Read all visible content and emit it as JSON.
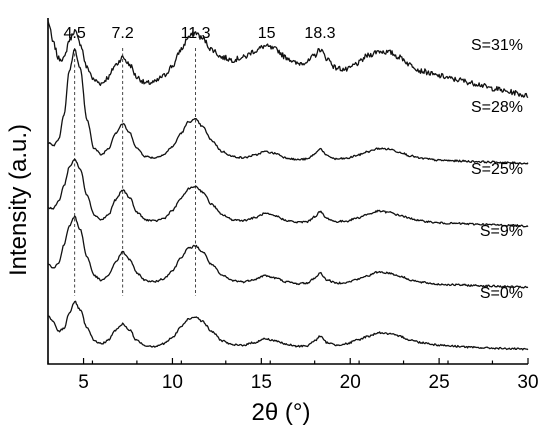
{
  "chart_data": {
    "type": "line",
    "xlabel": "2θ (°)",
    "ylabel": "Intensity (a.u.)",
    "xlim": [
      3,
      30
    ],
    "xticks": [
      5,
      10,
      15,
      20,
      25,
      30
    ],
    "yticks_shown": false,
    "grid": false,
    "peaks": [
      {
        "label": "4.5",
        "x": 4.5
      },
      {
        "label": "7.2",
        "x": 7.2
      },
      {
        "label": "11.3",
        "x": 11.3
      },
      {
        "label": "15",
        "x": 15.3
      },
      {
        "label": "18.3",
        "x": 18.3
      }
    ],
    "series": [
      {
        "name": "S=31%",
        "offset": 4,
        "x": [
          3,
          3.3,
          3.6,
          3.9,
          4.2,
          4.5,
          4.8,
          5.2,
          5.6,
          6.0,
          6.4,
          6.8,
          7.2,
          7.6,
          8.0,
          8.5,
          9.0,
          9.5,
          10.0,
          10.5,
          10.9,
          11.3,
          11.7,
          12.2,
          12.8,
          13.4,
          14.0,
          14.6,
          15.2,
          15.8,
          16.4,
          17.0,
          17.6,
          18.0,
          18.3,
          18.7,
          19.2,
          19.8,
          20.4,
          21.0,
          21.6,
          22.2,
          22.8,
          23.4,
          24.0,
          25.0,
          26.0,
          27.0,
          28.0,
          29.0,
          30.0
        ],
        "y": [
          1.3,
          0.95,
          0.7,
          0.7,
          1.0,
          1.15,
          0.95,
          0.55,
          0.35,
          0.3,
          0.4,
          0.6,
          0.72,
          0.6,
          0.4,
          0.3,
          0.32,
          0.42,
          0.58,
          0.85,
          1.05,
          1.12,
          1.02,
          0.85,
          0.72,
          0.68,
          0.72,
          0.82,
          0.9,
          0.85,
          0.72,
          0.62,
          0.65,
          0.75,
          0.85,
          0.7,
          0.55,
          0.52,
          0.62,
          0.75,
          0.82,
          0.8,
          0.72,
          0.6,
          0.5,
          0.42,
          0.36,
          0.3,
          0.22,
          0.16,
          0.1
        ]
      },
      {
        "name": "S=28%",
        "offset": 3,
        "x": [
          3,
          3.3,
          3.6,
          3.9,
          4.2,
          4.5,
          4.8,
          5.2,
          5.6,
          6.0,
          6.4,
          6.8,
          7.2,
          7.6,
          8.0,
          8.5,
          9.0,
          9.5,
          10.0,
          10.5,
          10.9,
          11.3,
          11.7,
          12.2,
          12.8,
          13.4,
          14.0,
          14.6,
          15.2,
          15.8,
          16.4,
          17.0,
          17.6,
          18.0,
          18.3,
          18.7,
          19.2,
          19.8,
          20.4,
          21.0,
          21.6,
          22.2,
          22.8,
          23.4,
          24.0,
          25.0,
          26.0,
          27.0,
          28.0,
          29.0,
          30.0
        ],
        "y": [
          0.35,
          0.3,
          0.4,
          0.8,
          1.5,
          1.85,
          1.55,
          0.7,
          0.25,
          0.15,
          0.25,
          0.5,
          0.65,
          0.5,
          0.25,
          0.12,
          0.1,
          0.15,
          0.28,
          0.5,
          0.68,
          0.72,
          0.6,
          0.38,
          0.2,
          0.12,
          0.1,
          0.14,
          0.2,
          0.17,
          0.1,
          0.07,
          0.08,
          0.16,
          0.25,
          0.13,
          0.08,
          0.09,
          0.14,
          0.2,
          0.25,
          0.24,
          0.19,
          0.13,
          0.09,
          0.06,
          0.05,
          0.04,
          0.03,
          0.02,
          0.01
        ]
      },
      {
        "name": "S=25%",
        "offset": 2,
        "x": [
          3,
          3.3,
          3.6,
          3.9,
          4.2,
          4.5,
          4.8,
          5.2,
          5.6,
          6.0,
          6.4,
          6.8,
          7.2,
          7.6,
          8.0,
          8.5,
          9.0,
          9.5,
          10.0,
          10.5,
          10.9,
          11.3,
          11.7,
          12.2,
          12.8,
          13.4,
          14.0,
          14.6,
          15.2,
          15.8,
          16.4,
          17.0,
          17.6,
          18.0,
          18.3,
          18.7,
          19.2,
          19.8,
          20.4,
          21.0,
          21.6,
          22.2,
          22.8,
          23.4,
          24.0,
          25.0,
          26.0,
          27.0,
          28.0,
          29.0,
          30.0
        ],
        "y": [
          0.3,
          0.28,
          0.4,
          0.65,
          0.95,
          1.08,
          0.92,
          0.5,
          0.18,
          0.1,
          0.18,
          0.42,
          0.58,
          0.46,
          0.22,
          0.1,
          0.08,
          0.12,
          0.25,
          0.45,
          0.6,
          0.64,
          0.55,
          0.35,
          0.18,
          0.1,
          0.09,
          0.13,
          0.2,
          0.16,
          0.09,
          0.06,
          0.07,
          0.15,
          0.23,
          0.12,
          0.07,
          0.08,
          0.13,
          0.19,
          0.24,
          0.22,
          0.17,
          0.12,
          0.08,
          0.05,
          0.04,
          0.03,
          0.02,
          0.01,
          0.0
        ]
      },
      {
        "name": "S=9%",
        "offset": 1,
        "x": [
          3,
          3.3,
          3.6,
          3.9,
          4.2,
          4.5,
          4.8,
          5.2,
          5.6,
          6.0,
          6.4,
          6.8,
          7.2,
          7.6,
          8.0,
          8.5,
          9.0,
          9.5,
          10.0,
          10.5,
          10.9,
          11.3,
          11.7,
          12.2,
          12.8,
          13.4,
          14.0,
          14.6,
          15.2,
          15.8,
          16.4,
          17.0,
          17.6,
          18.0,
          18.3,
          18.7,
          19.2,
          19.8,
          20.4,
          21.0,
          21.6,
          22.2,
          22.8,
          23.4,
          24.0,
          25.0,
          26.0,
          27.0,
          28.0,
          29.0,
          30.0
        ],
        "y": [
          0.4,
          0.32,
          0.4,
          0.7,
          1.0,
          1.15,
          0.95,
          0.5,
          0.2,
          0.12,
          0.2,
          0.42,
          0.58,
          0.46,
          0.24,
          0.12,
          0.1,
          0.15,
          0.28,
          0.5,
          0.64,
          0.68,
          0.58,
          0.38,
          0.2,
          0.12,
          0.1,
          0.14,
          0.2,
          0.16,
          0.1,
          0.07,
          0.08,
          0.16,
          0.24,
          0.13,
          0.08,
          0.09,
          0.14,
          0.2,
          0.26,
          0.24,
          0.19,
          0.13,
          0.09,
          0.06,
          0.05,
          0.04,
          0.03,
          0.02,
          0.01
        ]
      },
      {
        "name": "S=0%",
        "offset": 0,
        "x": [
          3,
          3.3,
          3.6,
          3.9,
          4.2,
          4.5,
          4.8,
          5.2,
          5.6,
          6.0,
          6.4,
          6.8,
          7.2,
          7.6,
          8.0,
          8.5,
          9.0,
          9.5,
          10.0,
          10.5,
          10.9,
          11.3,
          11.7,
          12.2,
          12.8,
          13.4,
          14.0,
          14.6,
          15.2,
          15.8,
          16.4,
          17.0,
          17.6,
          18.0,
          18.3,
          18.7,
          19.2,
          19.8,
          20.4,
          21.0,
          21.6,
          22.2,
          22.8,
          23.4,
          24.0,
          25.0,
          26.0,
          27.0,
          28.0,
          29.0,
          30.0
        ],
        "y": [
          0.55,
          0.45,
          0.3,
          0.35,
          0.6,
          0.78,
          0.65,
          0.35,
          0.15,
          0.1,
          0.16,
          0.32,
          0.42,
          0.32,
          0.15,
          0.07,
          0.06,
          0.1,
          0.2,
          0.38,
          0.5,
          0.54,
          0.46,
          0.3,
          0.15,
          0.08,
          0.08,
          0.12,
          0.18,
          0.15,
          0.09,
          0.06,
          0.07,
          0.15,
          0.22,
          0.12,
          0.08,
          0.1,
          0.16,
          0.22,
          0.28,
          0.26,
          0.22,
          0.16,
          0.12,
          0.08,
          0.06,
          0.04,
          0.03,
          0.02,
          0.01
        ]
      }
    ]
  }
}
